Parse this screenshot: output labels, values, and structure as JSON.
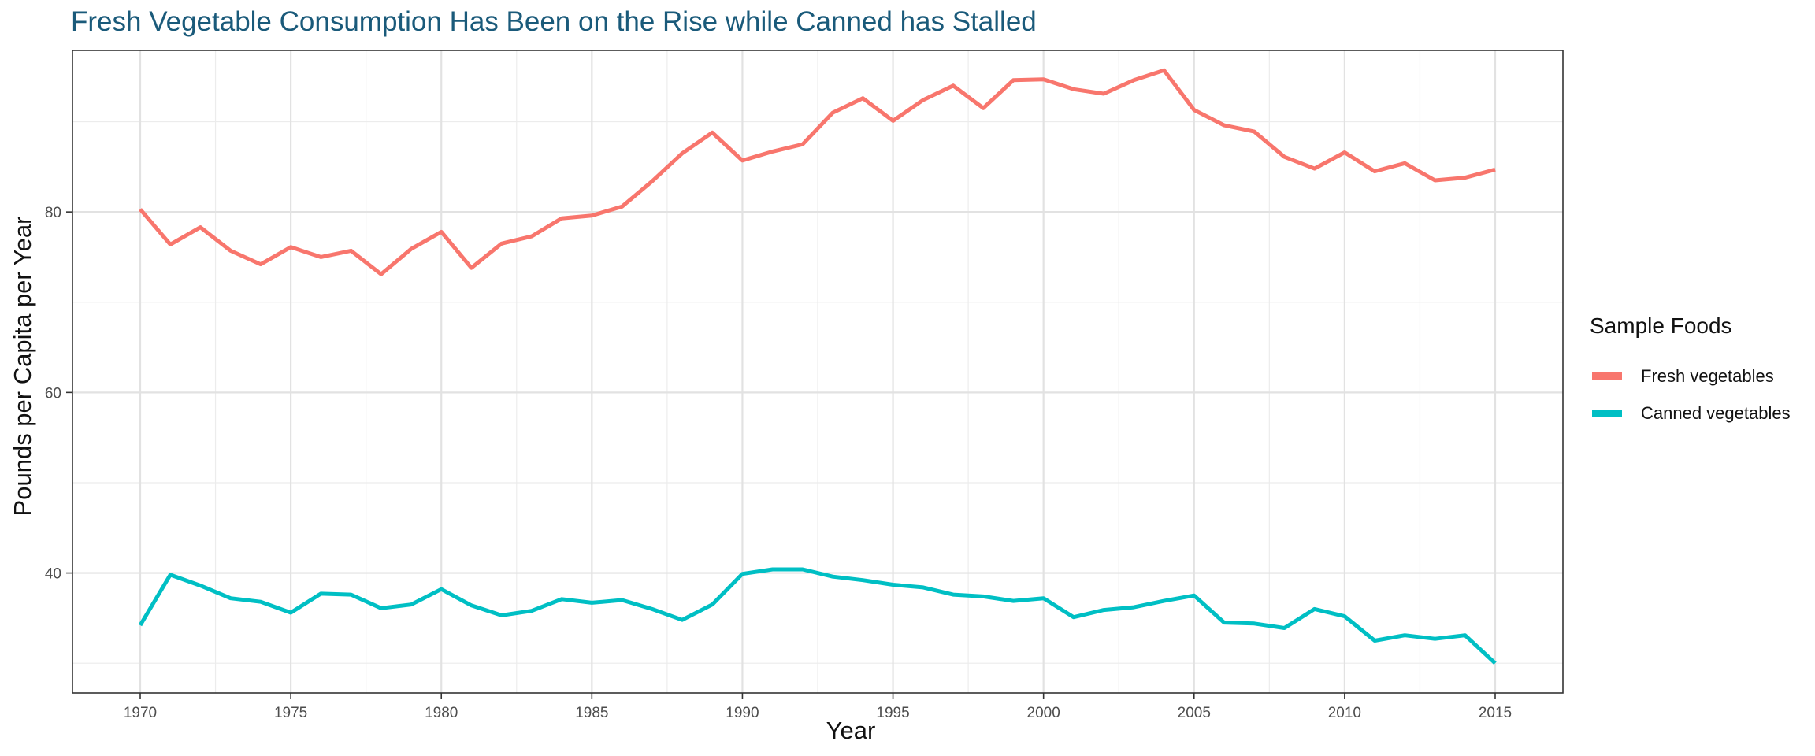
{
  "chart_data": {
    "type": "line",
    "title": "Fresh Vegetable Consumption Has Been on the Rise while Canned has Stalled",
    "xlabel": "Year",
    "ylabel": "Pounds per Capita per Year",
    "x": [
      1970,
      1971,
      1972,
      1973,
      1974,
      1975,
      1976,
      1977,
      1978,
      1979,
      1980,
      1981,
      1982,
      1983,
      1984,
      1985,
      1986,
      1987,
      1988,
      1989,
      1990,
      1991,
      1992,
      1993,
      1994,
      1995,
      1996,
      1997,
      1998,
      1999,
      2000,
      2001,
      2002,
      2003,
      2004,
      2005,
      2006,
      2007,
      2008,
      2009,
      2010,
      2011,
      2012,
      2013,
      2014,
      2015
    ],
    "xticks": [
      1970,
      1975,
      1980,
      1985,
      1990,
      1995,
      2000,
      2005,
      2010,
      2015
    ],
    "yticks": [
      40,
      60,
      80
    ],
    "xlim": [
      1967.75,
      2017.25
    ],
    "ylim": [
      26.7,
      97.9
    ],
    "grid": true,
    "legend_position": "right",
    "legend_title": "Sample Foods",
    "series": [
      {
        "name": "Fresh vegetables",
        "color": "#F8766D",
        "values": [
          80.3,
          76.4,
          78.3,
          75.7,
          74.2,
          76.1,
          75.0,
          75.7,
          73.1,
          75.9,
          77.8,
          73.8,
          76.5,
          77.3,
          79.3,
          79.6,
          80.6,
          83.4,
          86.5,
          88.8,
          85.7,
          86.7,
          87.5,
          91.0,
          92.6,
          90.1,
          92.4,
          94.0,
          91.5,
          94.6,
          94.7,
          93.6,
          93.1,
          94.6,
          95.7,
          91.3,
          89.6,
          88.9,
          86.1,
          84.8,
          86.6,
          84.5,
          85.4,
          83.5,
          83.8,
          84.7
        ]
      },
      {
        "name": "Canned vegetables",
        "color": "#00BFC4",
        "values": [
          34.2,
          39.8,
          38.6,
          37.2,
          36.8,
          35.6,
          37.7,
          37.6,
          36.1,
          36.5,
          38.2,
          36.4,
          35.3,
          35.8,
          37.1,
          36.7,
          37.0,
          36.0,
          34.8,
          36.5,
          39.9,
          40.4,
          40.4,
          39.6,
          39.2,
          38.7,
          38.4,
          37.6,
          37.4,
          36.9,
          37.2,
          35.1,
          35.9,
          36.2,
          36.9,
          37.5,
          34.5,
          34.4,
          33.9,
          36.0,
          35.2,
          32.5,
          33.1,
          32.7,
          33.1,
          30.0
        ]
      }
    ]
  }
}
